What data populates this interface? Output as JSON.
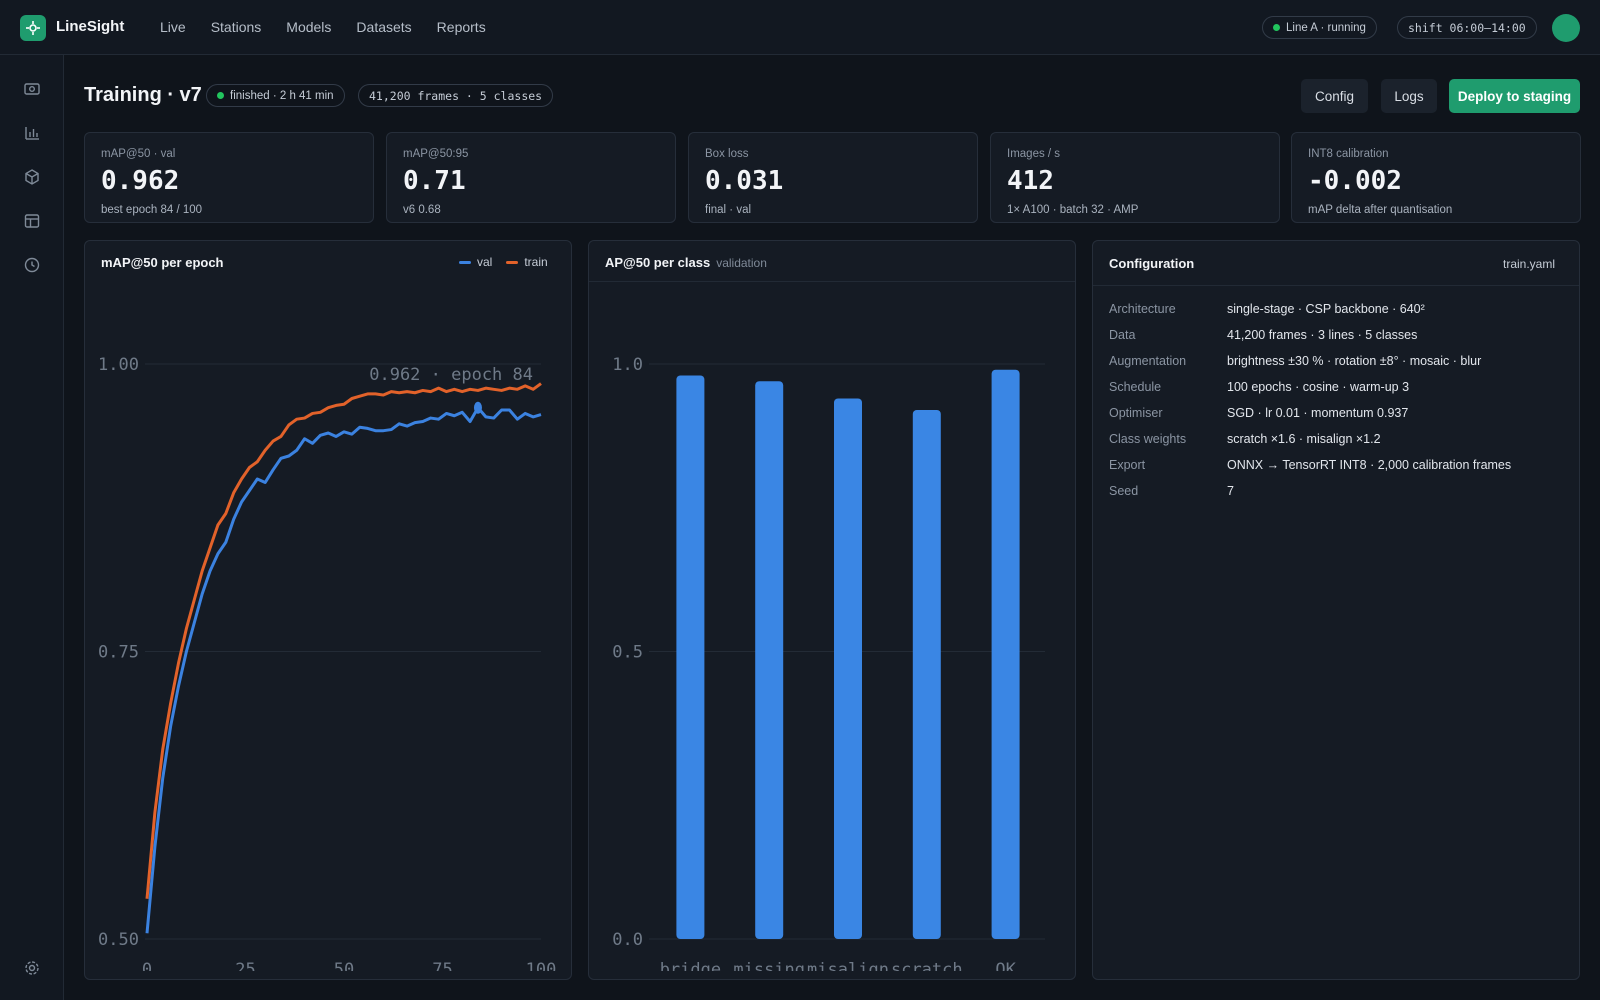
{
  "app": {
    "name": "LineSight"
  },
  "nav": {
    "items": [
      {
        "label": "Live"
      },
      {
        "label": "Stations"
      },
      {
        "label": "Models"
      },
      {
        "label": "Datasets"
      },
      {
        "label": "Reports"
      }
    ]
  },
  "status": {
    "line": "Line A · running",
    "shift": "shift 06:00–14:00"
  },
  "header": {
    "title": "Training · v7",
    "state": "finished · 2 h 41 min",
    "dataset": "41,200 frames · 5 classes",
    "config_label": "Config",
    "logs_label": "Logs",
    "deploy_label": "Deploy to staging"
  },
  "kpis": [
    {
      "label": "mAP@50 · val",
      "value": "0.962",
      "sub": "best epoch 84 / 100"
    },
    {
      "label": "mAP@50:95",
      "value": "0.71",
      "sub": "v6 0.68"
    },
    {
      "label": "Box loss",
      "value": "0.031",
      "sub": "final · val"
    },
    {
      "label": "Images / s",
      "value": "412",
      "sub": "1× A100 · batch 32 · AMP"
    },
    {
      "label": "INT8 calibration",
      "value": "-0.002",
      "sub": "mAP delta after quantisation"
    }
  ],
  "colors": {
    "val": "#3b82e0",
    "train": "#e2622a",
    "accent": "#1f9c6e",
    "bar": "#3a86e4"
  },
  "line_panel": {
    "title": "mAP@50 per epoch",
    "legend_val": "val",
    "legend_train": "train",
    "annotation": "0.962 · epoch 84"
  },
  "bar_panel": {
    "title": "AP@50 per class",
    "subtitle": "validation"
  },
  "config": {
    "title": "Configuration",
    "file": "train.yaml",
    "rows": [
      {
        "key": "Architecture",
        "value": "single-stage · CSP backbone · 640²"
      },
      {
        "key": "Data",
        "value": "41,200 frames · 3 lines · 5 classes"
      },
      {
        "key": "Augmentation",
        "value": "brightness ±30 % · rotation ±8° · mosaic · blur"
      },
      {
        "key": "Schedule",
        "value": "100 epochs · cosine · warm-up 3"
      },
      {
        "key": "Optimiser",
        "value": "SGD · lr 0.01 · momentum 0.937"
      },
      {
        "key": "Class weights",
        "value": "scratch ×1.6 · misalign ×1.2"
      },
      {
        "key": "Export",
        "value": "ONNX → TensorRT INT8 · 2,000 calibration frames"
      },
      {
        "key": "Seed",
        "value": "7"
      }
    ]
  },
  "chart_data": [
    {
      "type": "line",
      "title": "mAP@50 per epoch",
      "ylim": [
        0.5,
        1.0
      ],
      "xlim": [
        0,
        100
      ],
      "yticks": [
        "0.50",
        "0.75",
        "1.00"
      ],
      "xticks": [
        "0",
        "25",
        "50",
        "75",
        "100"
      ],
      "grid": true,
      "legend": "top-right",
      "x": [
        0,
        2,
        4,
        6,
        8,
        10,
        12,
        14,
        16,
        18,
        20,
        22,
        24,
        26,
        28,
        30,
        32,
        34,
        36,
        38,
        40,
        42,
        44,
        46,
        48,
        50,
        52,
        54,
        56,
        58,
        60,
        62,
        64,
        66,
        68,
        70,
        72,
        74,
        76,
        78,
        80,
        82,
        84,
        86,
        88,
        90,
        92,
        94,
        96,
        98,
        100
      ],
      "series": [
        {
          "name": "val",
          "values": [
            0.505,
            0.58,
            0.64,
            0.685,
            0.72,
            0.75,
            0.775,
            0.8,
            0.82,
            0.835,
            0.845,
            0.865,
            0.88,
            0.89,
            0.9,
            0.897,
            0.908,
            0.918,
            0.92,
            0.925,
            0.935,
            0.931,
            0.938,
            0.94,
            0.937,
            0.941,
            0.939,
            0.945,
            0.944,
            0.942,
            0.942,
            0.943,
            0.948,
            0.946,
            0.949,
            0.95,
            0.953,
            0.952,
            0.957,
            0.955,
            0.958,
            0.95,
            0.962,
            0.954,
            0.953,
            0.96,
            0.96,
            0.952,
            0.957,
            0.954,
            0.956
          ]
        },
        {
          "name": "train",
          "values": [
            0.535,
            0.61,
            0.665,
            0.705,
            0.74,
            0.77,
            0.795,
            0.82,
            0.84,
            0.86,
            0.87,
            0.888,
            0.9,
            0.91,
            0.915,
            0.925,
            0.933,
            0.937,
            0.947,
            0.952,
            0.953,
            0.957,
            0.958,
            0.962,
            0.964,
            0.965,
            0.97,
            0.972,
            0.974,
            0.974,
            0.973,
            0.976,
            0.975,
            0.976,
            0.975,
            0.977,
            0.976,
            0.979,
            0.976,
            0.978,
            0.976,
            0.978,
            0.977,
            0.979,
            0.978,
            0.977,
            0.979,
            0.978,
            0.981,
            0.978,
            0.983
          ]
        }
      ]
    },
    {
      "type": "bar",
      "title": "AP@50 per class",
      "subtitle": "validation",
      "categories": [
        "bridge",
        "missing",
        "misalign",
        "scratch",
        "OK"
      ],
      "values": [
        0.98,
        0.97,
        0.94,
        0.92,
        0.99
      ],
      "ylim": [
        0.0,
        1.0
      ],
      "yticks": [
        "0.0",
        "0.5",
        "1.0"
      ],
      "grid": true
    }
  ]
}
